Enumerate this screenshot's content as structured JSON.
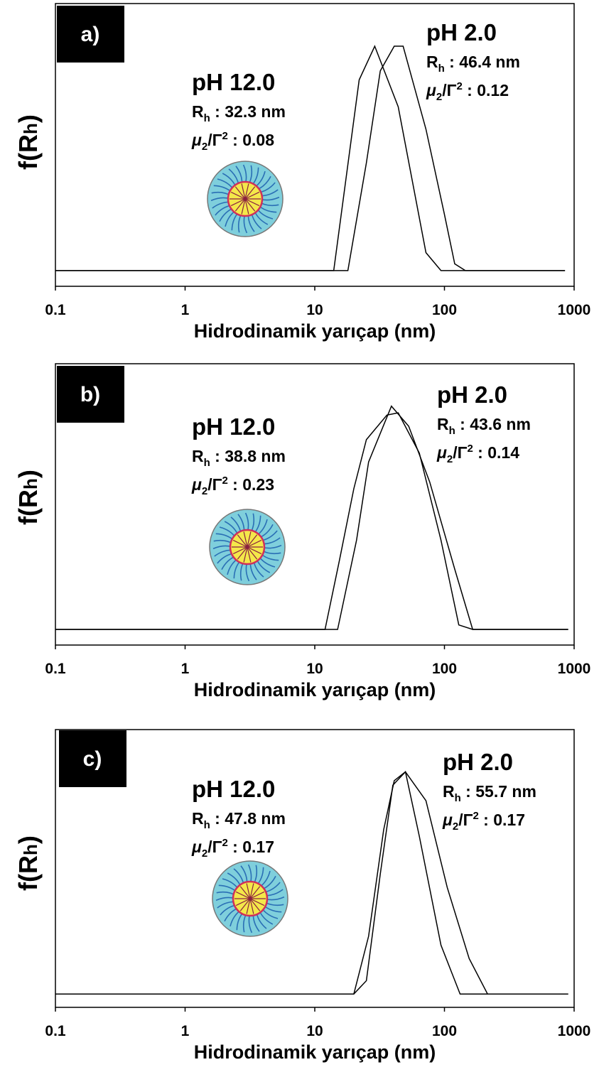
{
  "chart_data": [
    {
      "type": "line",
      "panel_label": "a)",
      "xlabel": "Hidrodinamik yarıçap (nm)",
      "ylabel": [
        "f(R",
        "h",
        ")"
      ],
      "xscale": "log",
      "xlim": [
        0.1,
        1000
      ],
      "xticks": [
        0.1,
        1,
        10,
        100,
        1000
      ],
      "ylim": [
        -0.07,
        1.19
      ],
      "series": [
        {
          "color": "#000000",
          "x": [
            0.1,
            14,
            22,
            29,
            44,
            72,
            94,
            850
          ],
          "values": [
            0,
            0,
            0.85,
            1.0,
            0.73,
            0.08,
            0,
            0
          ]
        },
        {
          "color": "#000000",
          "x": [
            0.1,
            18,
            25,
            32,
            41,
            48,
            72,
            100,
            120,
            145,
            850
          ],
          "values": [
            0,
            0,
            0.48,
            0.89,
            1.0,
            1.0,
            0.63,
            0.25,
            0.03,
            0,
            0
          ]
        }
      ],
      "annotations": [
        {
          "title": "pH 12.0",
          "rh": [
            "R",
            "h",
            " : 32.3 nm"
          ],
          "pdi": [
            "μ",
            "2",
            "/Γ",
            "2",
            " : 0.08"
          ]
        },
        {
          "title": "pH 2.0",
          "rh": [
            "R",
            "h",
            " : 46.4 nm"
          ],
          "pdi": [
            "μ",
            "2",
            "/Γ",
            "2",
            " : 0.12"
          ]
        }
      ]
    },
    {
      "type": "line",
      "panel_label": "b)",
      "xlabel": "Hidrodinamik yarıçap (nm)",
      "ylabel": [
        "f(R",
        "h",
        ")"
      ],
      "xscale": "log",
      "xlim": [
        0.1,
        1000
      ],
      "xticks": [
        0.1,
        1,
        10,
        100,
        1000
      ],
      "ylim": [
        -0.07,
        1.19
      ],
      "series": [
        {
          "color": "#000000",
          "x": [
            0.1,
            12,
            15.5,
            20,
            25,
            36,
            44,
            64,
            94,
            129,
            165,
            900
          ],
          "values": [
            0,
            0,
            0.31,
            0.63,
            0.85,
            0.96,
            0.97,
            0.79,
            0.4,
            0.02,
            0,
            0
          ]
        },
        {
          "color": "#000000",
          "x": [
            0.1,
            15,
            21,
            26,
            39,
            53,
            77,
            120,
            165,
            900
          ],
          "values": [
            0,
            0,
            0.4,
            0.75,
            1.0,
            0.91,
            0.66,
            0.27,
            0,
            0
          ]
        }
      ],
      "annotations": [
        {
          "title": "pH 12.0",
          "rh": [
            "R",
            "h",
            " : 38.8 nm"
          ],
          "pdi": [
            "μ",
            "2",
            "/Γ",
            "2",
            " : 0.23"
          ]
        },
        {
          "title": "pH 2.0",
          "rh": [
            "R",
            "h",
            " : 43.6 nm"
          ],
          "pdi": [
            "μ",
            "2",
            "/Γ",
            "2",
            " : 0.14"
          ]
        }
      ]
    },
    {
      "type": "line",
      "panel_label": "c)",
      "xlabel": "Hidrodinamik yarıçap (nm)",
      "ylabel": [
        "f(R",
        "h",
        ")"
      ],
      "xscale": "log",
      "xlim": [
        0.1,
        1000
      ],
      "xticks": [
        0.1,
        1,
        10,
        100,
        1000
      ],
      "ylim": [
        -0.06,
        1.19
      ],
      "series": [
        {
          "color": "#000000",
          "x": [
            0.1,
            20,
            25,
            32,
            40,
            50,
            64,
            94,
            132,
            900
          ],
          "values": [
            0,
            0,
            0.06,
            0.54,
            0.94,
            1.0,
            0.71,
            0.22,
            0,
            0
          ]
        },
        {
          "color": "#000000",
          "x": [
            0.1,
            20,
            26,
            34,
            41,
            50,
            72,
            105,
            155,
            215,
            900
          ],
          "values": [
            0,
            0,
            0.26,
            0.74,
            0.96,
            1.0,
            0.87,
            0.48,
            0.16,
            0,
            0
          ]
        }
      ],
      "annotations": [
        {
          "title": "pH 12.0",
          "rh": [
            "R",
            "h",
            " : 47.8 nm"
          ],
          "pdi": [
            "μ",
            "2",
            "/Γ",
            "2",
            " : 0.17"
          ]
        },
        {
          "title": "pH 2.0",
          "rh": [
            "R",
            "h",
            " : 55.7 nm"
          ],
          "pdi": [
            "μ",
            "2",
            "/Γ",
            "2",
            " : 0.17"
          ]
        }
      ]
    }
  ]
}
